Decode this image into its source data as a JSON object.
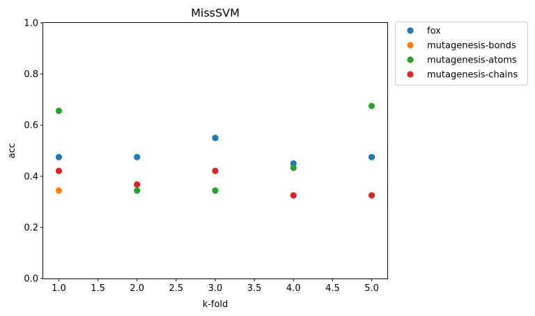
{
  "chart_data": {
    "type": "scatter",
    "title": "MissSVM",
    "xlabel": "k-fold",
    "ylabel": "acc",
    "xlim": [
      0.8,
      5.2
    ],
    "ylim": [
      0.0,
      1.0
    ],
    "xticks": [
      1.0,
      1.5,
      2.0,
      2.5,
      3.0,
      3.5,
      4.0,
      4.5,
      5.0
    ],
    "xtick_labels": [
      "1.0",
      "1.5",
      "2.0",
      "2.5",
      "3.0",
      "3.5",
      "4.0",
      "4.5",
      "5.0"
    ],
    "yticks": [
      0.0,
      0.2,
      0.4,
      0.6,
      0.8,
      1.0
    ],
    "ytick_labels": [
      "0.0",
      "0.2",
      "0.4",
      "0.6",
      "0.8",
      "1.0"
    ],
    "grid": false,
    "legend_position": "outside-upper-right",
    "series": [
      {
        "name": "fox",
        "color": "#1f77b4",
        "x": [
          1,
          2,
          3,
          4,
          5
        ],
        "y": [
          0.475,
          0.475,
          0.55,
          0.45,
          0.475
        ]
      },
      {
        "name": "mutagenesis-bonds",
        "color": "#ff7f0e",
        "x": [
          1
        ],
        "y": [
          0.344
        ]
      },
      {
        "name": "mutagenesis-atoms",
        "color": "#2ca02c",
        "x": [
          1,
          2,
          3,
          4,
          5
        ],
        "y": [
          0.656,
          0.344,
          0.344,
          0.433,
          0.675
        ]
      },
      {
        "name": "mutagenesis-chains",
        "color": "#d62728",
        "x": [
          1,
          2,
          3,
          4,
          5
        ],
        "y": [
          0.421,
          0.368,
          0.421,
          0.325,
          0.325
        ]
      }
    ]
  }
}
